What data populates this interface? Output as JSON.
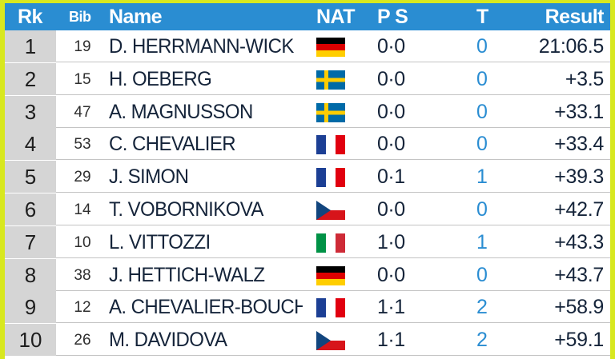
{
  "header": {
    "rank": "Rk",
    "bib": "Bib",
    "name": "Name",
    "nat": "NAT",
    "ps": "P S",
    "t": "T",
    "result": "Result"
  },
  "rows": [
    {
      "rank": "1",
      "bib": "19",
      "name": "D. HERRMANN-WICK",
      "nat": "GER",
      "ps": "0·0",
      "t": "0",
      "result": "21:06.5"
    },
    {
      "rank": "2",
      "bib": "15",
      "name": "H. OEBERG",
      "nat": "SWE",
      "ps": "0·0",
      "t": "0",
      "result": "+3.5"
    },
    {
      "rank": "3",
      "bib": "47",
      "name": "A. MAGNUSSON",
      "nat": "SWE",
      "ps": "0·0",
      "t": "0",
      "result": "+33.1"
    },
    {
      "rank": "4",
      "bib": "53",
      "name": "C. CHEVALIER",
      "nat": "FRA",
      "ps": "0·0",
      "t": "0",
      "result": "+33.4"
    },
    {
      "rank": "5",
      "bib": "29",
      "name": "J. SIMON",
      "nat": "FRA",
      "ps": "0·1",
      "t": "1",
      "result": "+39.3"
    },
    {
      "rank": "6",
      "bib": "14",
      "name": "T. VOBORNIKOVA",
      "nat": "CZE",
      "ps": "0·0",
      "t": "0",
      "result": "+42.7"
    },
    {
      "rank": "7",
      "bib": "10",
      "name": "L. VITTOZZI",
      "nat": "ITA",
      "ps": "1·0",
      "t": "1",
      "result": "+43.3"
    },
    {
      "rank": "8",
      "bib": "38",
      "name": "J. HETTICH-WALZ",
      "nat": "GER",
      "ps": "0·0",
      "t": "0",
      "result": "+43.7"
    },
    {
      "rank": "9",
      "bib": "12",
      "name": "A. CHEVALIER-BOUCH",
      "nat": "FRA",
      "ps": "1·1",
      "t": "2",
      "result": "+58.9"
    },
    {
      "rank": "10",
      "bib": "26",
      "name": "M. DAVIDOVA",
      "nat": "CZE",
      "ps": "1·1",
      "t": "2",
      "result": "+59.1"
    }
  ],
  "flag_colors": {
    "GER": [
      "#000000",
      "#dd0000",
      "#ffce00"
    ],
    "SWE": [
      "#006aa7",
      "#fecc00"
    ],
    "FRA": [
      "#1c3f94",
      "#ffffff",
      "#e1000f"
    ],
    "ITA": [
      "#009246",
      "#ffffff",
      "#ce2b37"
    ],
    "CZE": [
      "#ffffff",
      "#d7141a",
      "#11457e"
    ]
  },
  "colors": {
    "frame": "#d8e81f",
    "header_bg": "#2a8dd2",
    "rank_bg": "#d5d5d5",
    "target_text": "#2a8dd2",
    "text": "#15243a"
  }
}
